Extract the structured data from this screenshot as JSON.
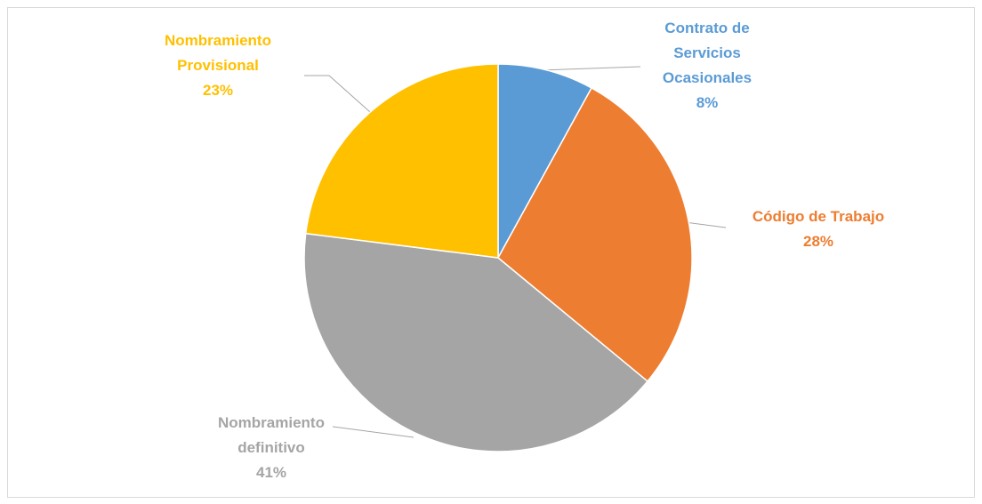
{
  "chart_data": {
    "type": "pie",
    "categories": [
      "Contrato de Servicios Ocasionales",
      "Código de Trabajo",
      "Nombramiento definitivo",
      "Nombramiento Provisional"
    ],
    "values": [
      8,
      28,
      41,
      23
    ],
    "value_labels": [
      "8%",
      "28%",
      "41%",
      "23%"
    ],
    "colors": [
      "#5b9bd5",
      "#ed7d31",
      "#a5a5a5",
      "#ffc000"
    ]
  }
}
